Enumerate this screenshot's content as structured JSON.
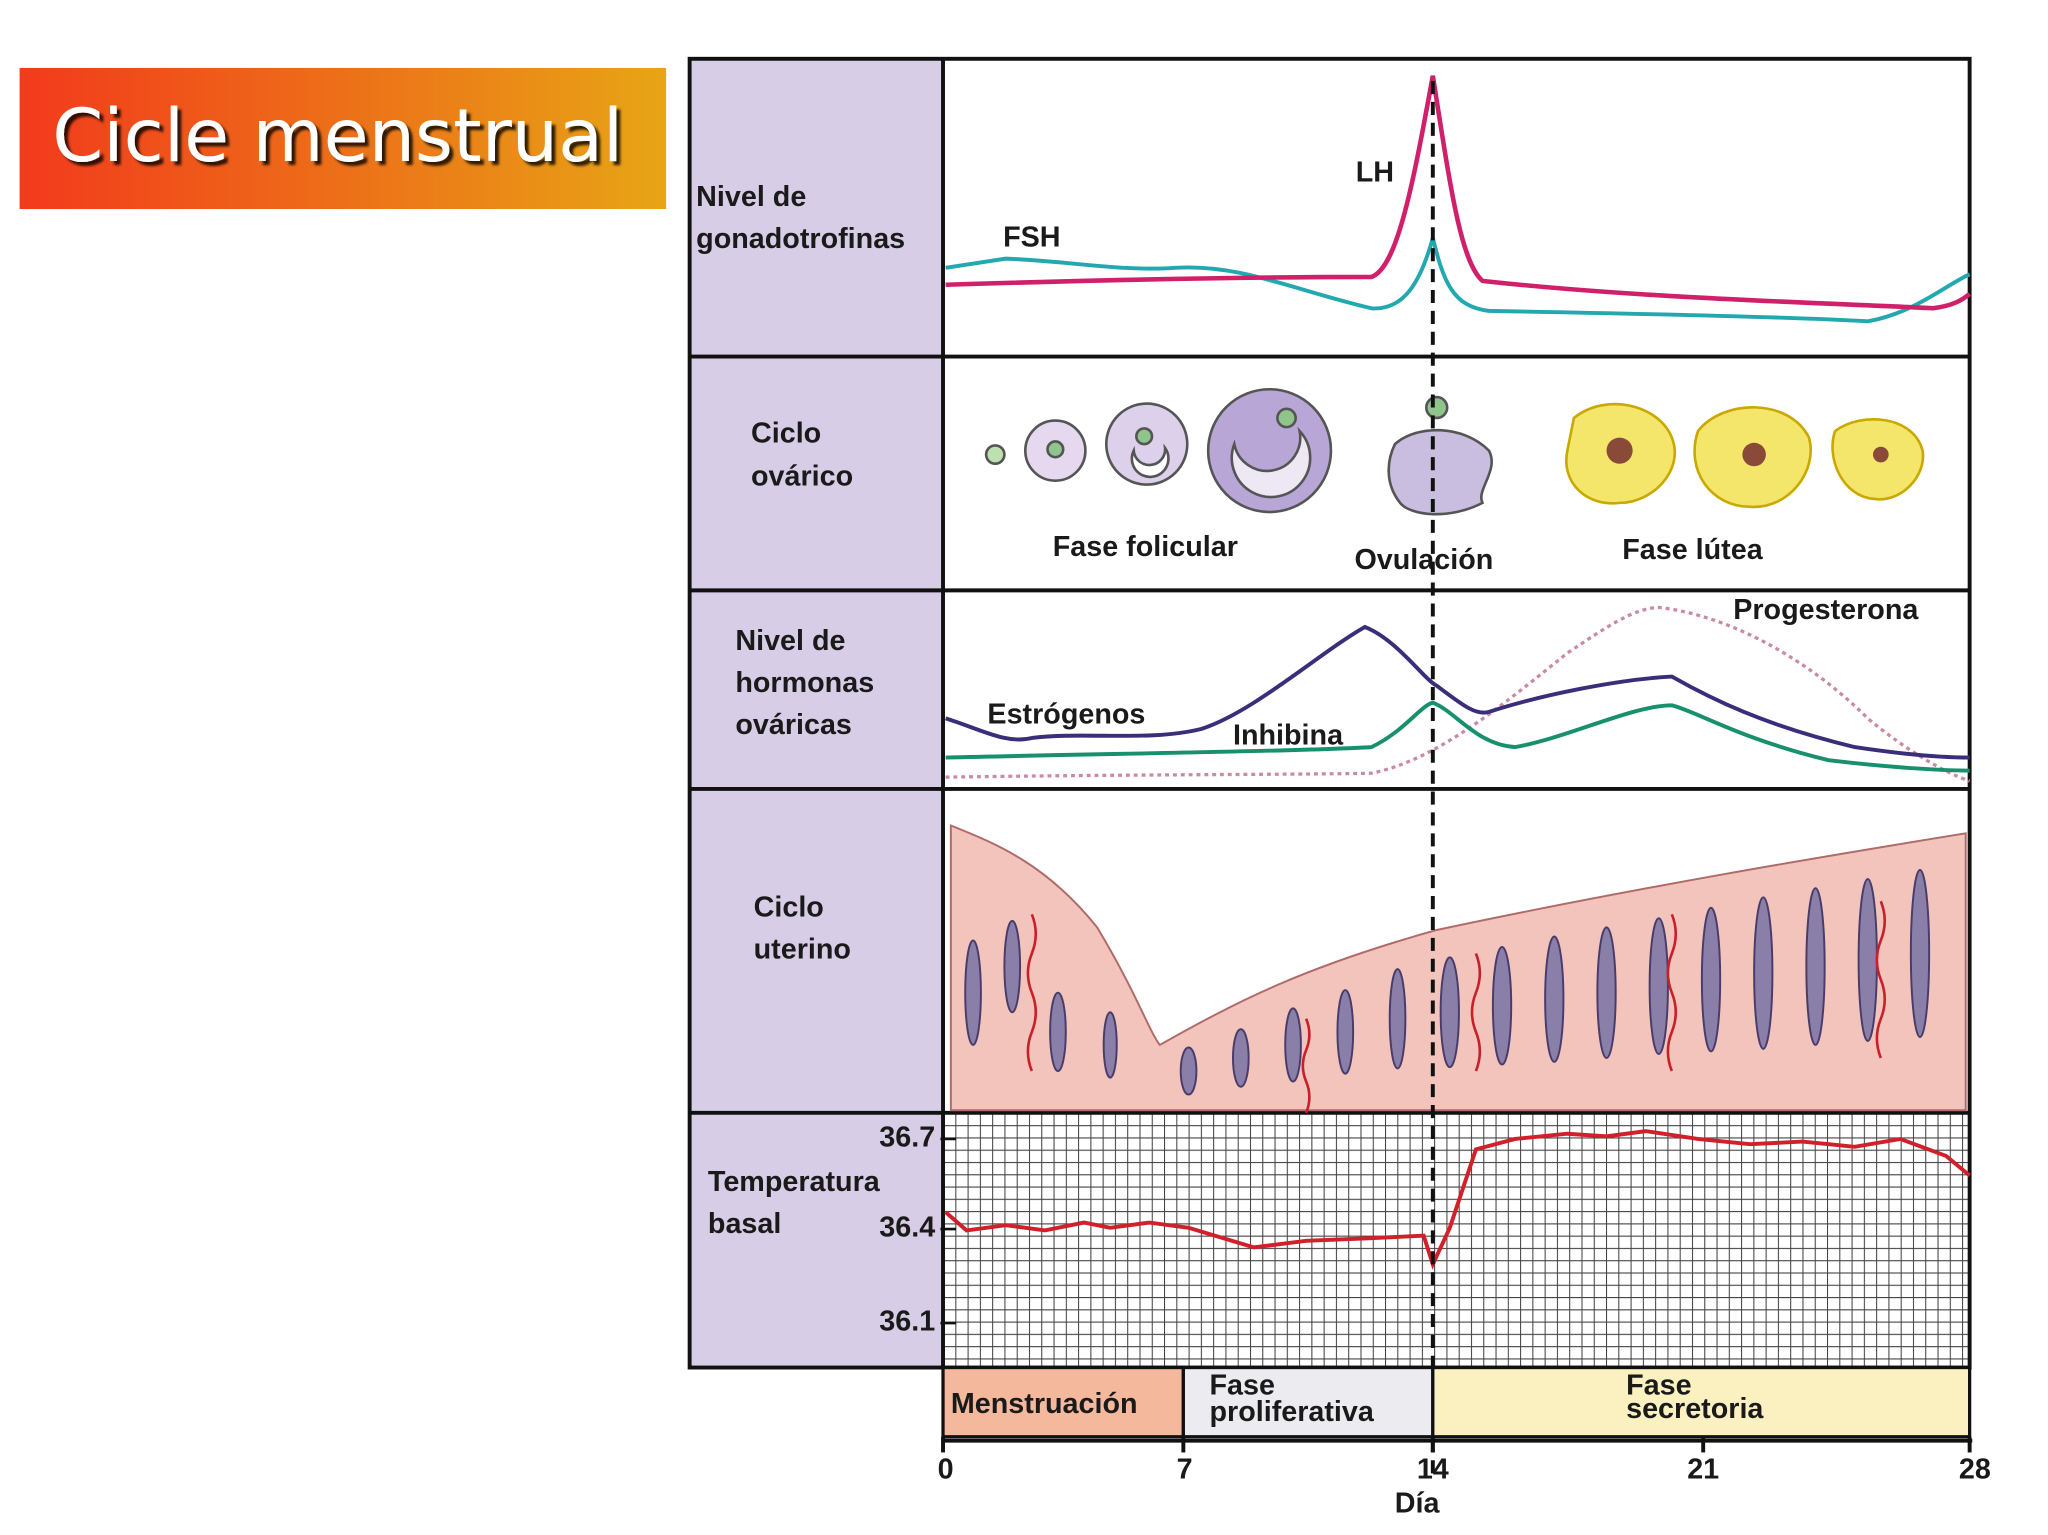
{
  "slide": {
    "title": "Cicle menstrual"
  },
  "diagram": {
    "panels": [
      {
        "label": [
          "Nivel de",
          "gonadotrofinas"
        ],
        "annotations": [
          "FSH",
          "LH"
        ]
      },
      {
        "label": [
          "Ciclo",
          "ovárico"
        ],
        "annotations": [
          "Fase folicular",
          "Ovulación",
          "Fase lútea"
        ]
      },
      {
        "label": [
          "Nivel de",
          "hormonas",
          "ováricas"
        ],
        "annotations": [
          "Estrógenos",
          "Inhibina",
          "Progesterona"
        ]
      },
      {
        "label": [
          "Ciclo",
          "uterino"
        ]
      },
      {
        "label": [
          "Temperatura",
          "basal"
        ],
        "ticks": [
          "36.7",
          "36.4",
          "36.1"
        ]
      }
    ],
    "phases": [
      [
        "Menstruación"
      ],
      [
        "Fase",
        "proliferativa"
      ],
      [
        "Fase",
        "secretoria"
      ]
    ],
    "day_axis": {
      "ticks": [
        "0",
        "7",
        "14",
        "21",
        "28"
      ],
      "label": "Día"
    }
  }
}
